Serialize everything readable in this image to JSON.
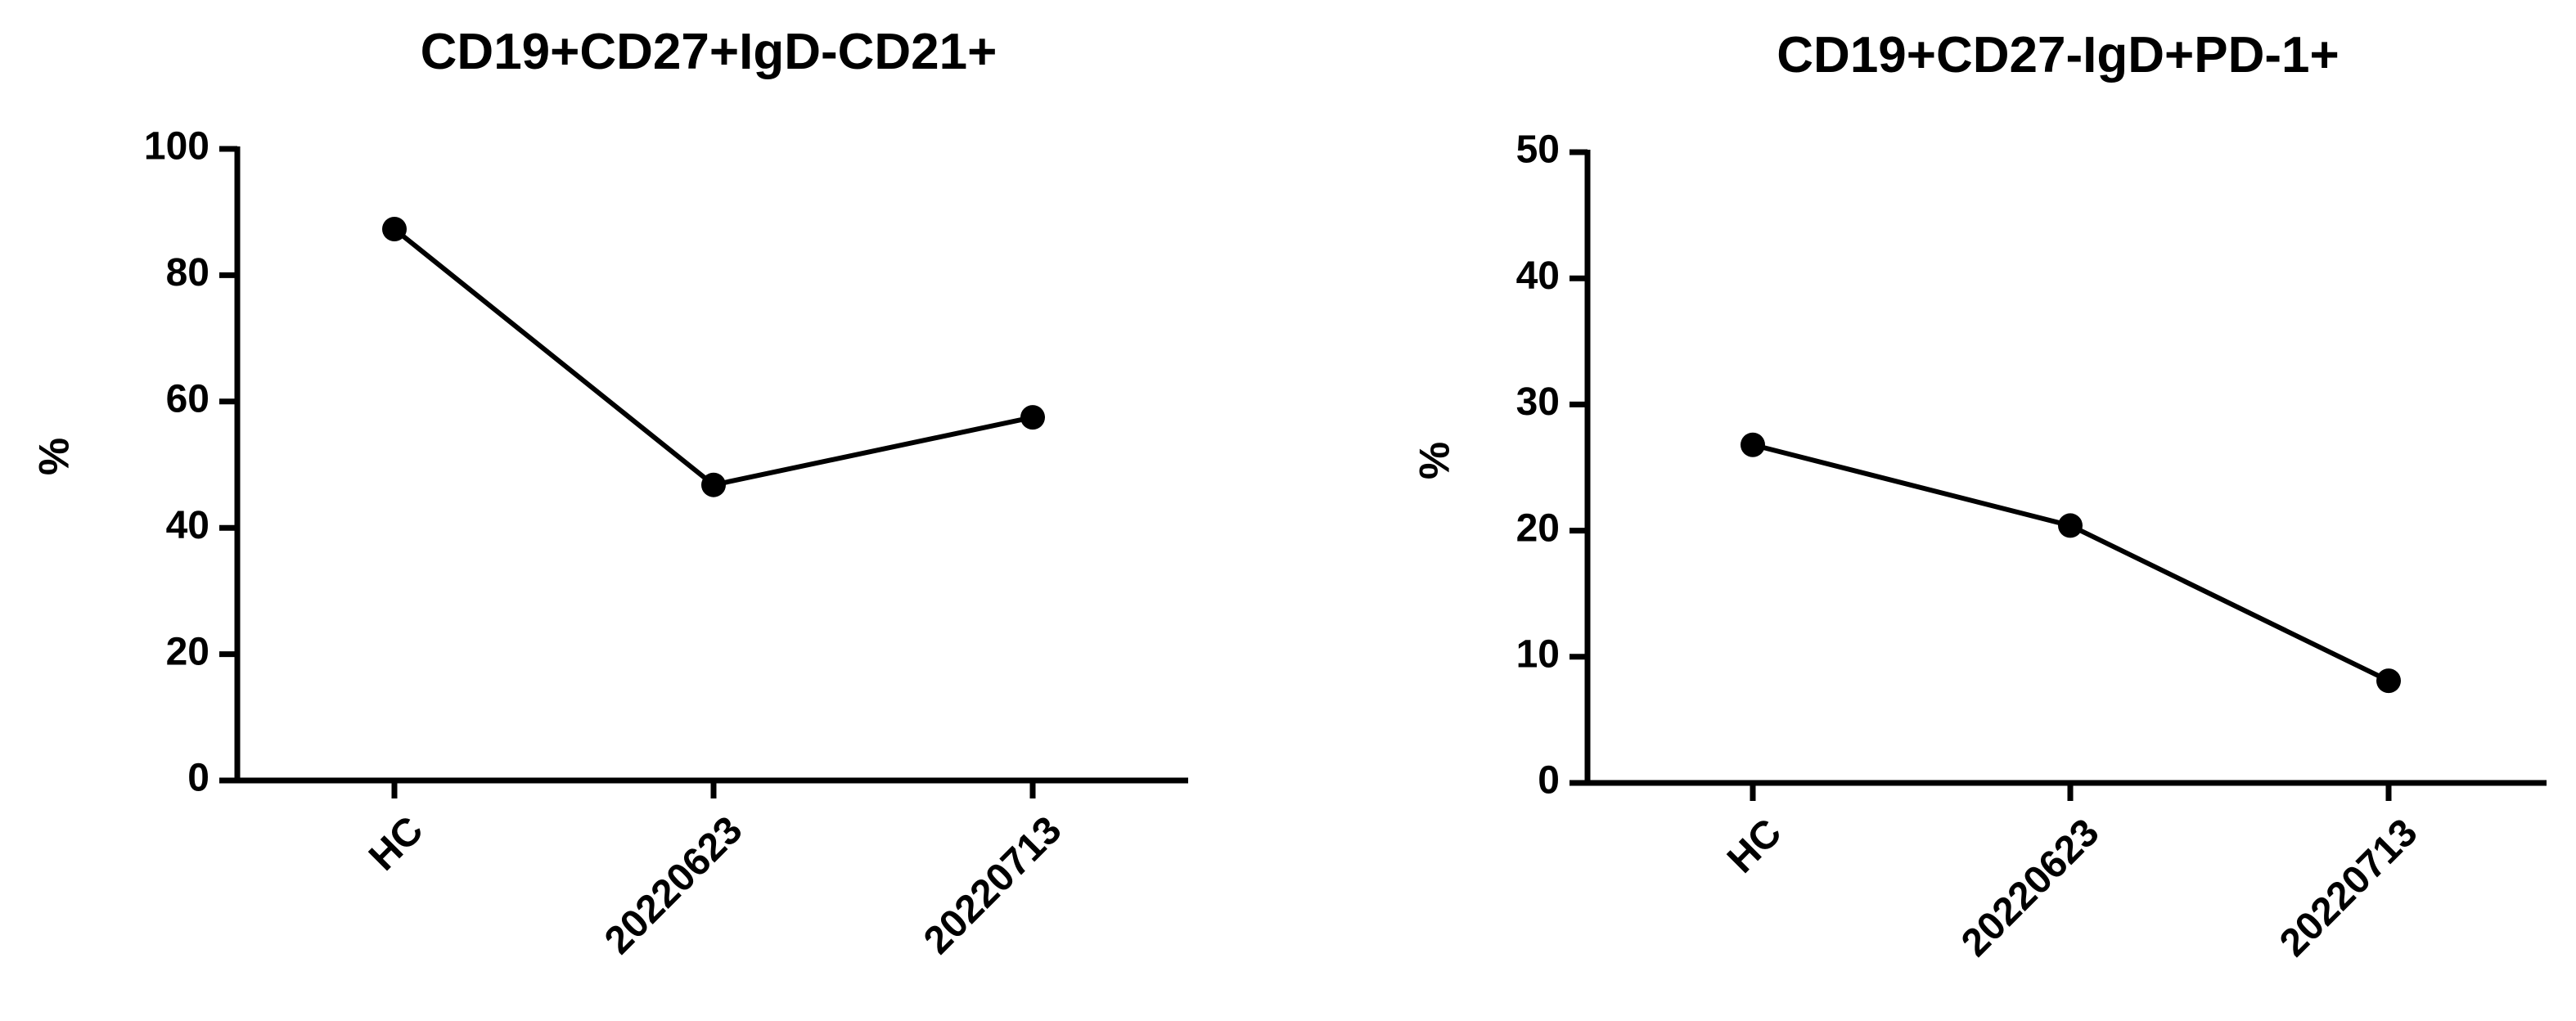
{
  "chart_data": [
    {
      "type": "line",
      "title": "CD19+CD27+IgD-CD21+",
      "ylabel": "%",
      "xlabel": "",
      "categories": [
        "HC",
        "20220623",
        "20220713"
      ],
      "series": [
        {
          "values": [
            87.3,
            46.8,
            57.5
          ]
        }
      ],
      "ylim": [
        0,
        100
      ],
      "yticks": [
        0,
        20,
        40,
        60,
        80,
        100
      ],
      "color": "#000000"
    },
    {
      "type": "line",
      "title": "CD19+CD27-IgD+PD-1+",
      "ylabel": "%",
      "xlabel": "",
      "categories": [
        "HC",
        "20220623",
        "20220713"
      ],
      "series": [
        {
          "values": [
            26.8,
            20.4,
            8.1
          ]
        }
      ],
      "ylim": [
        0,
        50
      ],
      "yticks": [
        0,
        10,
        20,
        30,
        40,
        50
      ],
      "color": "#000000"
    }
  ]
}
